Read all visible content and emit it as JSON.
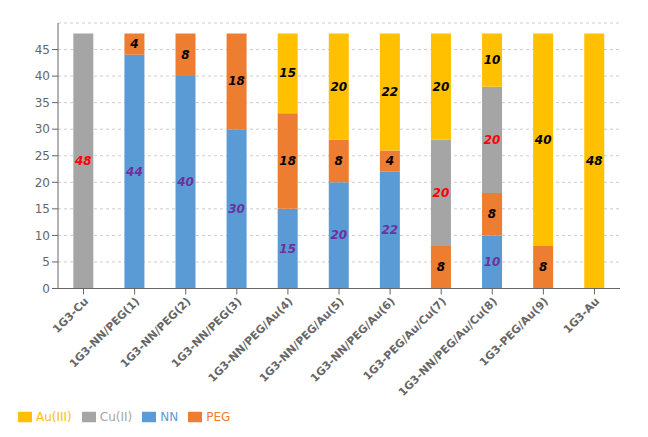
{
  "chart_data": {
    "type": "bar",
    "stacked": true,
    "categories": [
      "1G3-Cu",
      "1G3-NN/PEG(1)",
      "1G3-NN/PEG(2)",
      "1G3-NN/PEG(3)",
      "1G3-NN/PEG/Au(4)",
      "1G3-NN/PEG/Au(5)",
      "1G3-NN/PEG/Au(6)",
      "1G3-PEG/Au/Cu(7)",
      "1G3-NN/PEG/Au/Cu(8)",
      "1G3-PEG/Au(9)",
      "1G3-Au"
    ],
    "series": [
      {
        "name": "NN",
        "color": "#5B9BD5",
        "values": [
          0,
          44,
          40,
          30,
          15,
          20,
          22,
          0,
          10,
          0,
          0
        ]
      },
      {
        "name": "PEG",
        "color": "#ED7D31",
        "values": [
          0,
          4,
          8,
          18,
          18,
          8,
          4,
          8,
          8,
          8,
          0
        ]
      },
      {
        "name": "Cu(II)",
        "color": "#A5A5A5",
        "values": [
          48,
          0,
          0,
          0,
          0,
          0,
          0,
          20,
          20,
          0,
          0
        ]
      },
      {
        "name": "Au(III)",
        "color": "#FFC000",
        "values": [
          0,
          0,
          0,
          0,
          15,
          20,
          22,
          20,
          10,
          40,
          48
        ]
      }
    ],
    "ylim": [
      0,
      50
    ],
    "yticks": [
      0,
      5,
      10,
      15,
      20,
      25,
      30,
      35,
      40,
      45
    ],
    "grid": true,
    "legend": "bottom",
    "data_labels": true
  }
}
